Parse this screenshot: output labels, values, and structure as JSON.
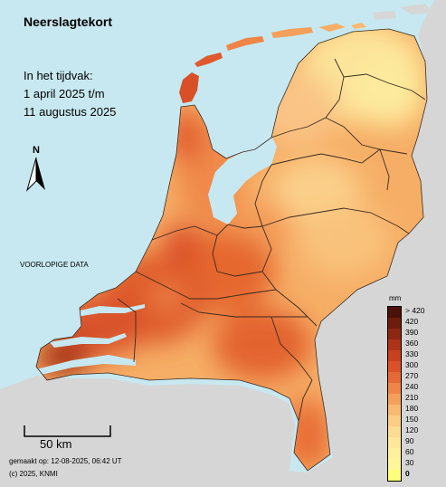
{
  "title": "Neerslagtekort",
  "period": [
    "In het tijdvak:",
    "1 april 2025 t/m",
    "11 augustus 2025"
  ],
  "north_label": "N",
  "preliminary": "VOORLOPIGE DATA",
  "scale_label": "50 km",
  "generated": "gemaakt op: 12-08-2025, 06:42 UT",
  "copyright": "(c) 2025, KNMI",
  "legend": {
    "unit": "mm",
    "labels": [
      "> 420",
      "420",
      "390",
      "360",
      "330",
      "300",
      "270",
      "240",
      "210",
      "180",
      "150",
      "120",
      "90",
      "60",
      "30",
      "0"
    ],
    "colors": [
      "#4a1208",
      "#6e1c0c",
      "#8e2712",
      "#ad3318",
      "#c9401f",
      "#db5129",
      "#e66a36",
      "#ef8546",
      "#f4a05a",
      "#f8b970",
      "#fbcd83",
      "#fcdc92",
      "#fde89a",
      "#fef09c",
      "#fff59b",
      "#ffff7a"
    ]
  },
  "colors": {
    "sea": "#c7e8f0",
    "neighbour_land": "#d6d6d6",
    "lake": "#c7e8f0"
  }
}
